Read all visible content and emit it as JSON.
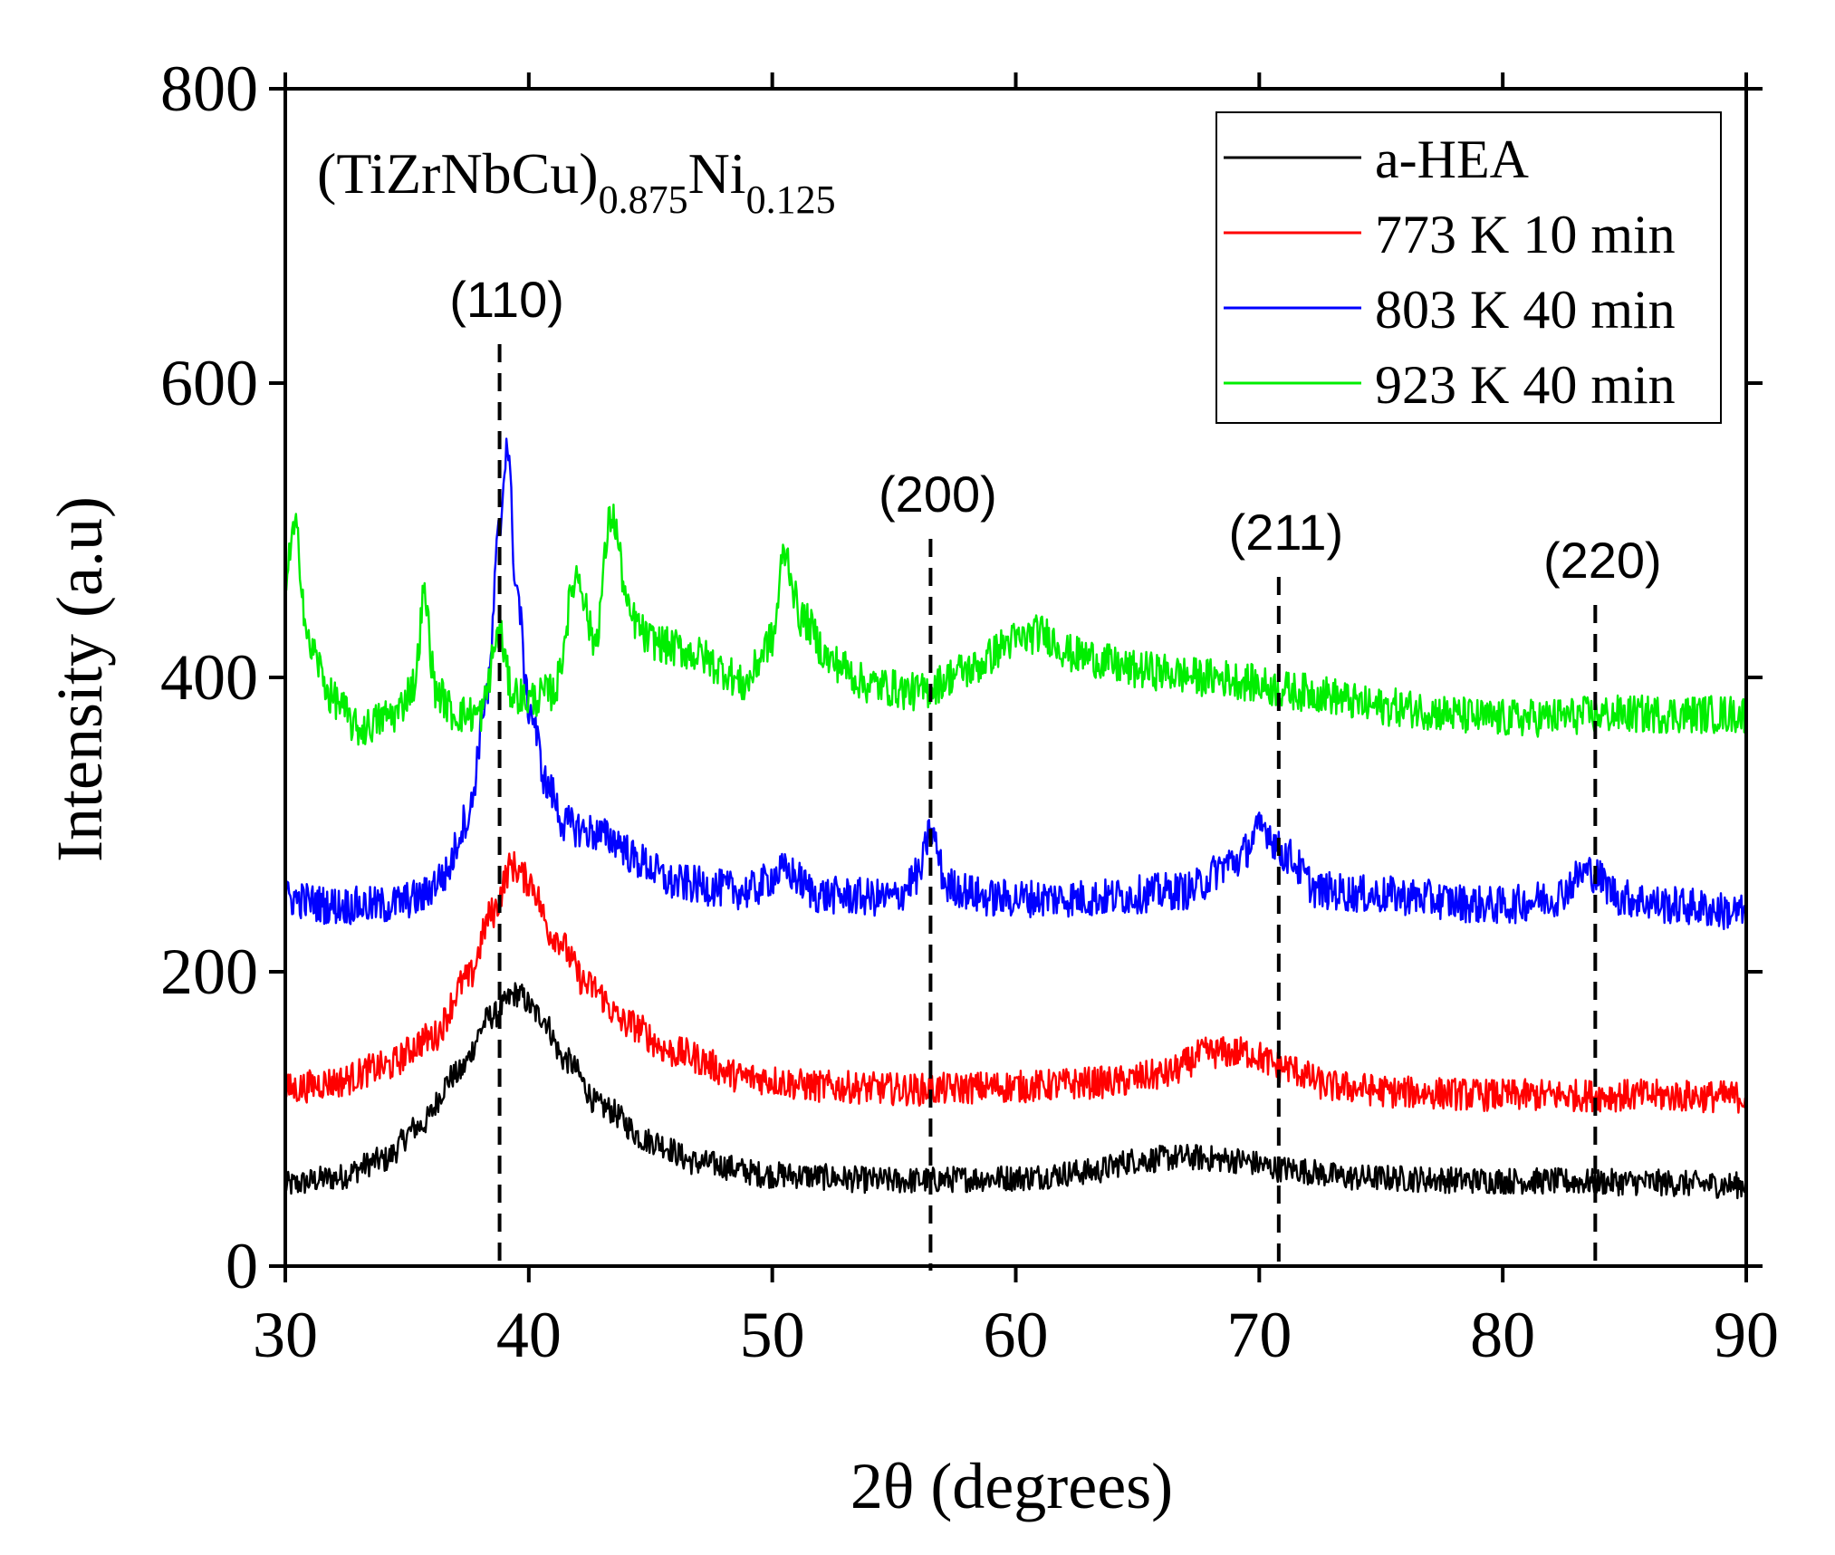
{
  "chart_data": {
    "type": "line",
    "title": "(TiZrNbCu)",
    "title_parts": {
      "base1": "(TiZrNbCu)",
      "sub1": "0.875",
      "base2": "Ni",
      "sub2": "0.125"
    },
    "xlabel": "2θ (degrees)",
    "ylabel": "Intensity (a.u)",
    "xlim": [
      30,
      90
    ],
    "ylim": [
      0,
      800
    ],
    "xticks": [
      30,
      40,
      50,
      60,
      70,
      80,
      90
    ],
    "yticks": [
      0,
      200,
      400,
      600,
      800
    ],
    "xtick_labels": [
      "30",
      "40",
      "50",
      "60",
      "70",
      "80",
      "90"
    ],
    "ytick_labels": [
      "0",
      "200",
      "400",
      "600",
      "800"
    ],
    "grid": false,
    "legend_position": "top-right",
    "series": [
      {
        "name": "a-HEA",
        "color": "#000000",
        "noise": 9,
        "points": [
          [
            30,
            55
          ],
          [
            32,
            60
          ],
          [
            34,
            72
          ],
          [
            35.5,
            95
          ],
          [
            37,
            130
          ],
          [
            38.5,
            170
          ],
          [
            39.5,
            185
          ],
          [
            40.5,
            170
          ],
          [
            41.5,
            140
          ],
          [
            43,
            108
          ],
          [
            45,
            85
          ],
          [
            47,
            70
          ],
          [
            50,
            62
          ],
          [
            55,
            58
          ],
          [
            60,
            60
          ],
          [
            63,
            64
          ],
          [
            65,
            72
          ],
          [
            67,
            74
          ],
          [
            69,
            72
          ],
          [
            71,
            66
          ],
          [
            74,
            60
          ],
          [
            80,
            58
          ],
          [
            85,
            57
          ],
          [
            90,
            55
          ]
        ]
      },
      {
        "name": "773 K 10 min",
        "color": "#ff0000",
        "noise": 11,
        "points": [
          [
            30,
            120
          ],
          [
            32,
            125
          ],
          [
            34,
            135
          ],
          [
            36,
            155
          ],
          [
            37.5,
            195
          ],
          [
            38.5,
            240
          ],
          [
            39.3,
            272
          ],
          [
            40,
            262
          ],
          [
            41,
            225
          ],
          [
            42.5,
            190
          ],
          [
            44,
            165
          ],
          [
            46,
            145
          ],
          [
            49,
            128
          ],
          [
            52,
            122
          ],
          [
            56,
            120
          ],
          [
            60,
            122
          ],
          [
            64,
            125
          ],
          [
            66,
            130
          ],
          [
            68,
            145
          ],
          [
            69.5,
            145
          ],
          [
            71,
            135
          ],
          [
            73,
            122
          ],
          [
            76,
            118
          ],
          [
            80,
            116
          ],
          [
            85,
            116
          ],
          [
            90,
            115
          ]
        ]
      },
      {
        "name": "803 K 40 min",
        "color": "#0000ff",
        "noise": 13,
        "points": [
          [
            30,
            250
          ],
          [
            32,
            245
          ],
          [
            34,
            245
          ],
          [
            35.5,
            250
          ],
          [
            36.5,
            265
          ],
          [
            37.5,
            305
          ],
          [
            38.3,
            390
          ],
          [
            38.8,
            500
          ],
          [
            39.1,
            560
          ],
          [
            39.5,
            460
          ],
          [
            40,
            380
          ],
          [
            40.8,
            325
          ],
          [
            41.5,
            300
          ],
          [
            42.5,
            295
          ],
          [
            43.5,
            290
          ],
          [
            44.5,
            275
          ],
          [
            46,
            260
          ],
          [
            49,
            255
          ],
          [
            50.5,
            268
          ],
          [
            52,
            252
          ],
          [
            55,
            250
          ],
          [
            56,
            265
          ],
          [
            56.5,
            295
          ],
          [
            57.2,
            258
          ],
          [
            59,
            250
          ],
          [
            63,
            250
          ],
          [
            67,
            255
          ],
          [
            69,
            275
          ],
          [
            70.2,
            298
          ],
          [
            71,
            280
          ],
          [
            72.5,
            255
          ],
          [
            75,
            252
          ],
          [
            80,
            245
          ],
          [
            82,
            250
          ],
          [
            83.5,
            268
          ],
          [
            85,
            250
          ],
          [
            87,
            245
          ],
          [
            90,
            240
          ]
        ]
      },
      {
        "name": "923 K 40 min",
        "color": "#00ee00",
        "noise": 13,
        "points": [
          [
            30,
            470
          ],
          [
            30.4,
            500
          ],
          [
            31,
            420
          ],
          [
            32,
            385
          ],
          [
            33,
            365
          ],
          [
            34.5,
            375
          ],
          [
            35.3,
            395
          ],
          [
            35.7,
            455
          ],
          [
            36.2,
            390
          ],
          [
            37,
            375
          ],
          [
            38,
            375
          ],
          [
            38.8,
            430
          ],
          [
            39.3,
            390
          ],
          [
            40,
            385
          ],
          [
            41,
            390
          ],
          [
            42,
            470
          ],
          [
            42.7,
            425
          ],
          [
            43.4,
            510
          ],
          [
            44.2,
            440
          ],
          [
            45,
            425
          ],
          [
            46,
            420
          ],
          [
            47,
            415
          ],
          [
            48,
            405
          ],
          [
            48.8,
            395
          ],
          [
            50,
            425
          ],
          [
            50.5,
            485
          ],
          [
            51.2,
            440
          ],
          [
            52.5,
            410
          ],
          [
            54,
            395
          ],
          [
            56,
            390
          ],
          [
            58,
            405
          ],
          [
            60,
            425
          ],
          [
            61,
            430
          ],
          [
            62.5,
            415
          ],
          [
            65,
            405
          ],
          [
            68,
            400
          ],
          [
            72,
            390
          ],
          [
            75,
            380
          ],
          [
            80,
            372
          ],
          [
            85,
            375
          ],
          [
            90,
            375
          ]
        ]
      }
    ],
    "reference_lines": [
      {
        "label": "(110)",
        "x": 38.8
      },
      {
        "label": "(200)",
        "x": 56.5
      },
      {
        "label": "(211)",
        "x": 70.8
      },
      {
        "label": "(220)",
        "x": 83.8
      }
    ]
  }
}
